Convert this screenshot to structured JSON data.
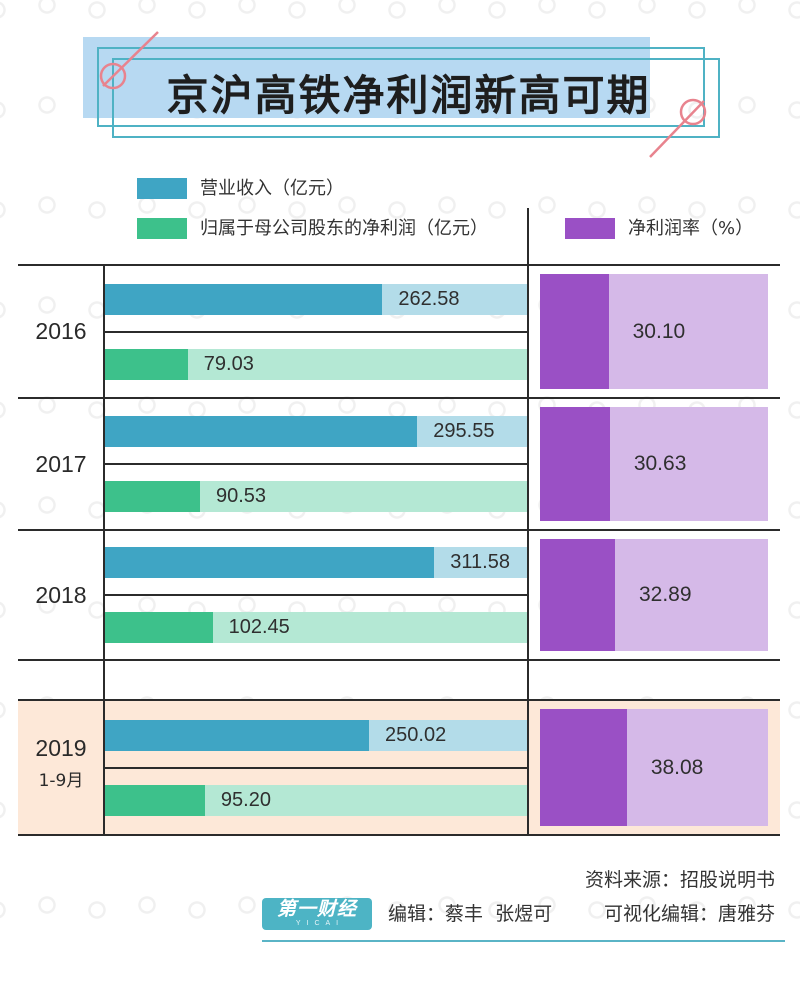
{
  "colors": {
    "revenue": "#3fa5c4",
    "revenue_track": "#b3dce9",
    "profit": "#3dc18b",
    "profit_track": "#b4e8d4",
    "margin": "#9a50c5",
    "margin_track": "#d5b9e8",
    "highlight_row": "#fde8d8",
    "title_fill": "#b7d9f2",
    "title_frame": "#4fb2c4",
    "accent_pink": "#e8838e",
    "rule": "#2b2b2b",
    "logo": "#4db4c5",
    "footer_rule": "#5ab4c6"
  },
  "chart_data": {
    "type": "bar",
    "orientation": "horizontal",
    "title": "京沪高铁净利润新高可期",
    "categories": [
      "2016",
      "2017",
      "2018",
      "2019"
    ],
    "category_sublabels": [
      "",
      "",
      "",
      "1-9月"
    ],
    "highlighted_category": "2019",
    "series": [
      {
        "name": "营业收入（亿元）",
        "values": [
          262.58,
          295.55,
          311.58,
          250.02
        ]
      },
      {
        "name": "归属于母公司股东的净利润（亿元）",
        "values": [
          79.03,
          90.53,
          102.45,
          95.2
        ]
      },
      {
        "name": "净利润率（%）",
        "values": [
          30.1,
          30.63,
          32.89,
          38.08
        ]
      }
    ],
    "xlim_amount": [
      0,
      400
    ],
    "xlim_percent": [
      0,
      100
    ],
    "legend_position": "top",
    "grid": false
  },
  "footer": {
    "source": "资料来源：招股说明书",
    "logo_text": "第一财经",
    "logo_sub": "YICAI",
    "editors": "编辑：蔡丰  张煜可",
    "visual_editor": "可视化编辑：唐雅芬"
  }
}
